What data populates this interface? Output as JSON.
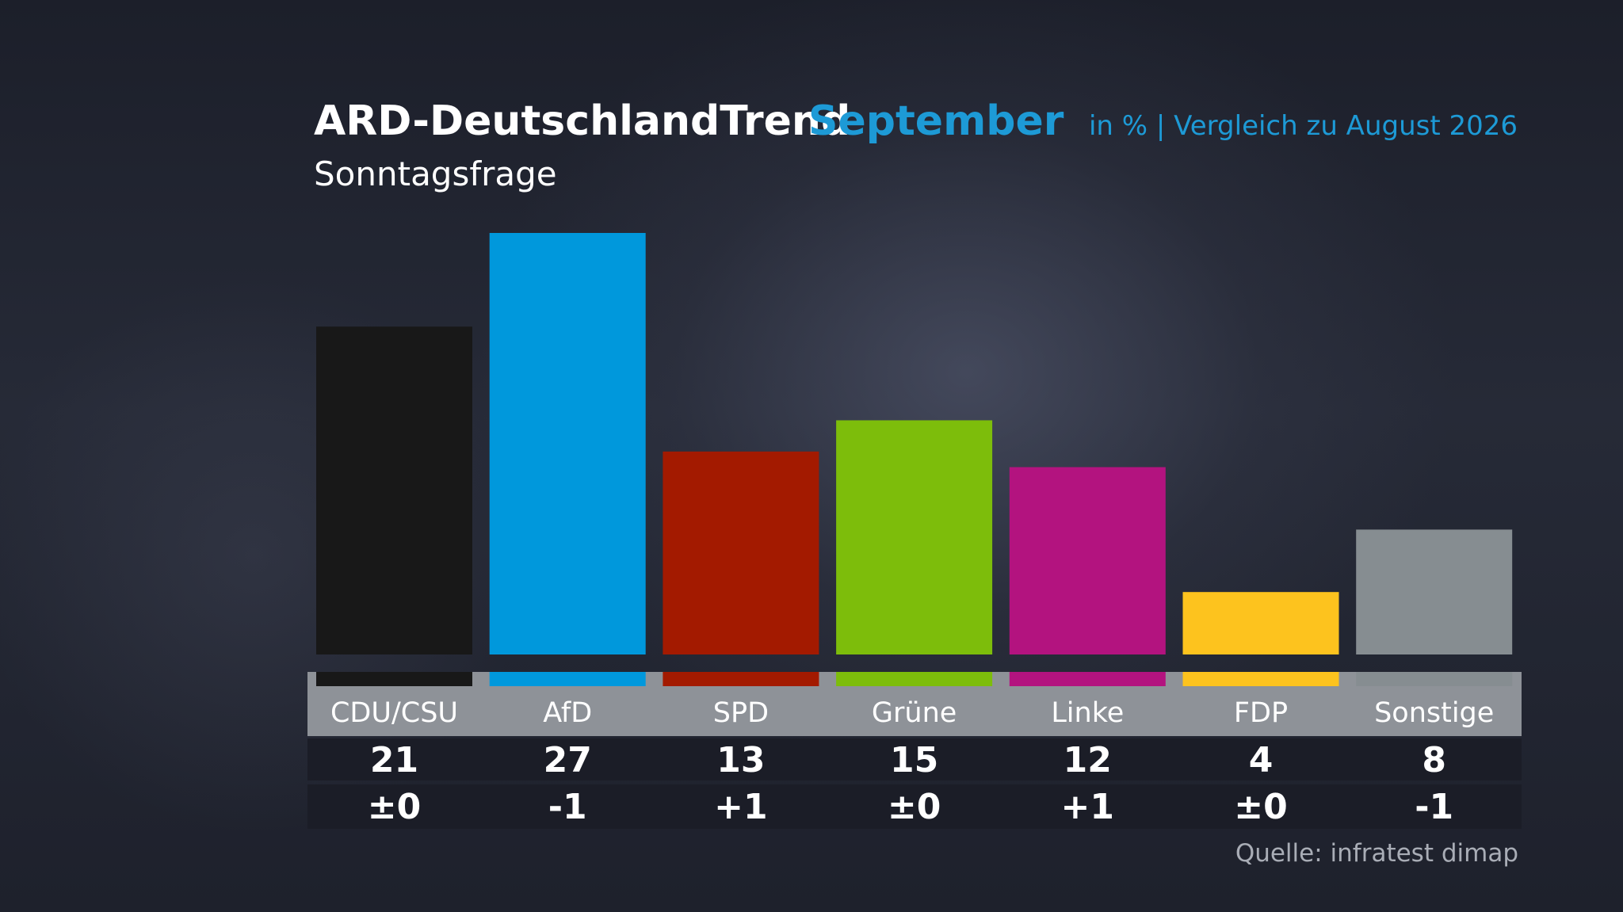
{
  "header": {
    "title": "ARD-DeutschlandTrend",
    "title_highlight": "September",
    "subtitle": "Sonntagsfrage",
    "note": "in % | Vergleich zu August 2026"
  },
  "footer": {
    "source": "Quelle: infratest dimap"
  },
  "chart_data": {
    "type": "bar",
    "title": "ARD-DeutschlandTrend September",
    "subtitle": "Sonntagsfrage",
    "unit": "in %",
    "comparison": "Vergleich zu August 2026",
    "categories": [
      "CDU/CSU",
      "AfD",
      "SPD",
      "Grüne",
      "Linke",
      "FDP",
      "Sonstige"
    ],
    "values": [
      21,
      27,
      13,
      15,
      12,
      4,
      8
    ],
    "changes": [
      "±0",
      "-1",
      "+1",
      "±0",
      "+1",
      "±0",
      "-1"
    ],
    "colors": [
      "#181818",
      "#0098dc",
      "#a31a00",
      "#7dbd0b",
      "#b3137f",
      "#fdc31e",
      "#868d91"
    ],
    "ylim": [
      0,
      27
    ],
    "grid": false,
    "legend": "none"
  }
}
